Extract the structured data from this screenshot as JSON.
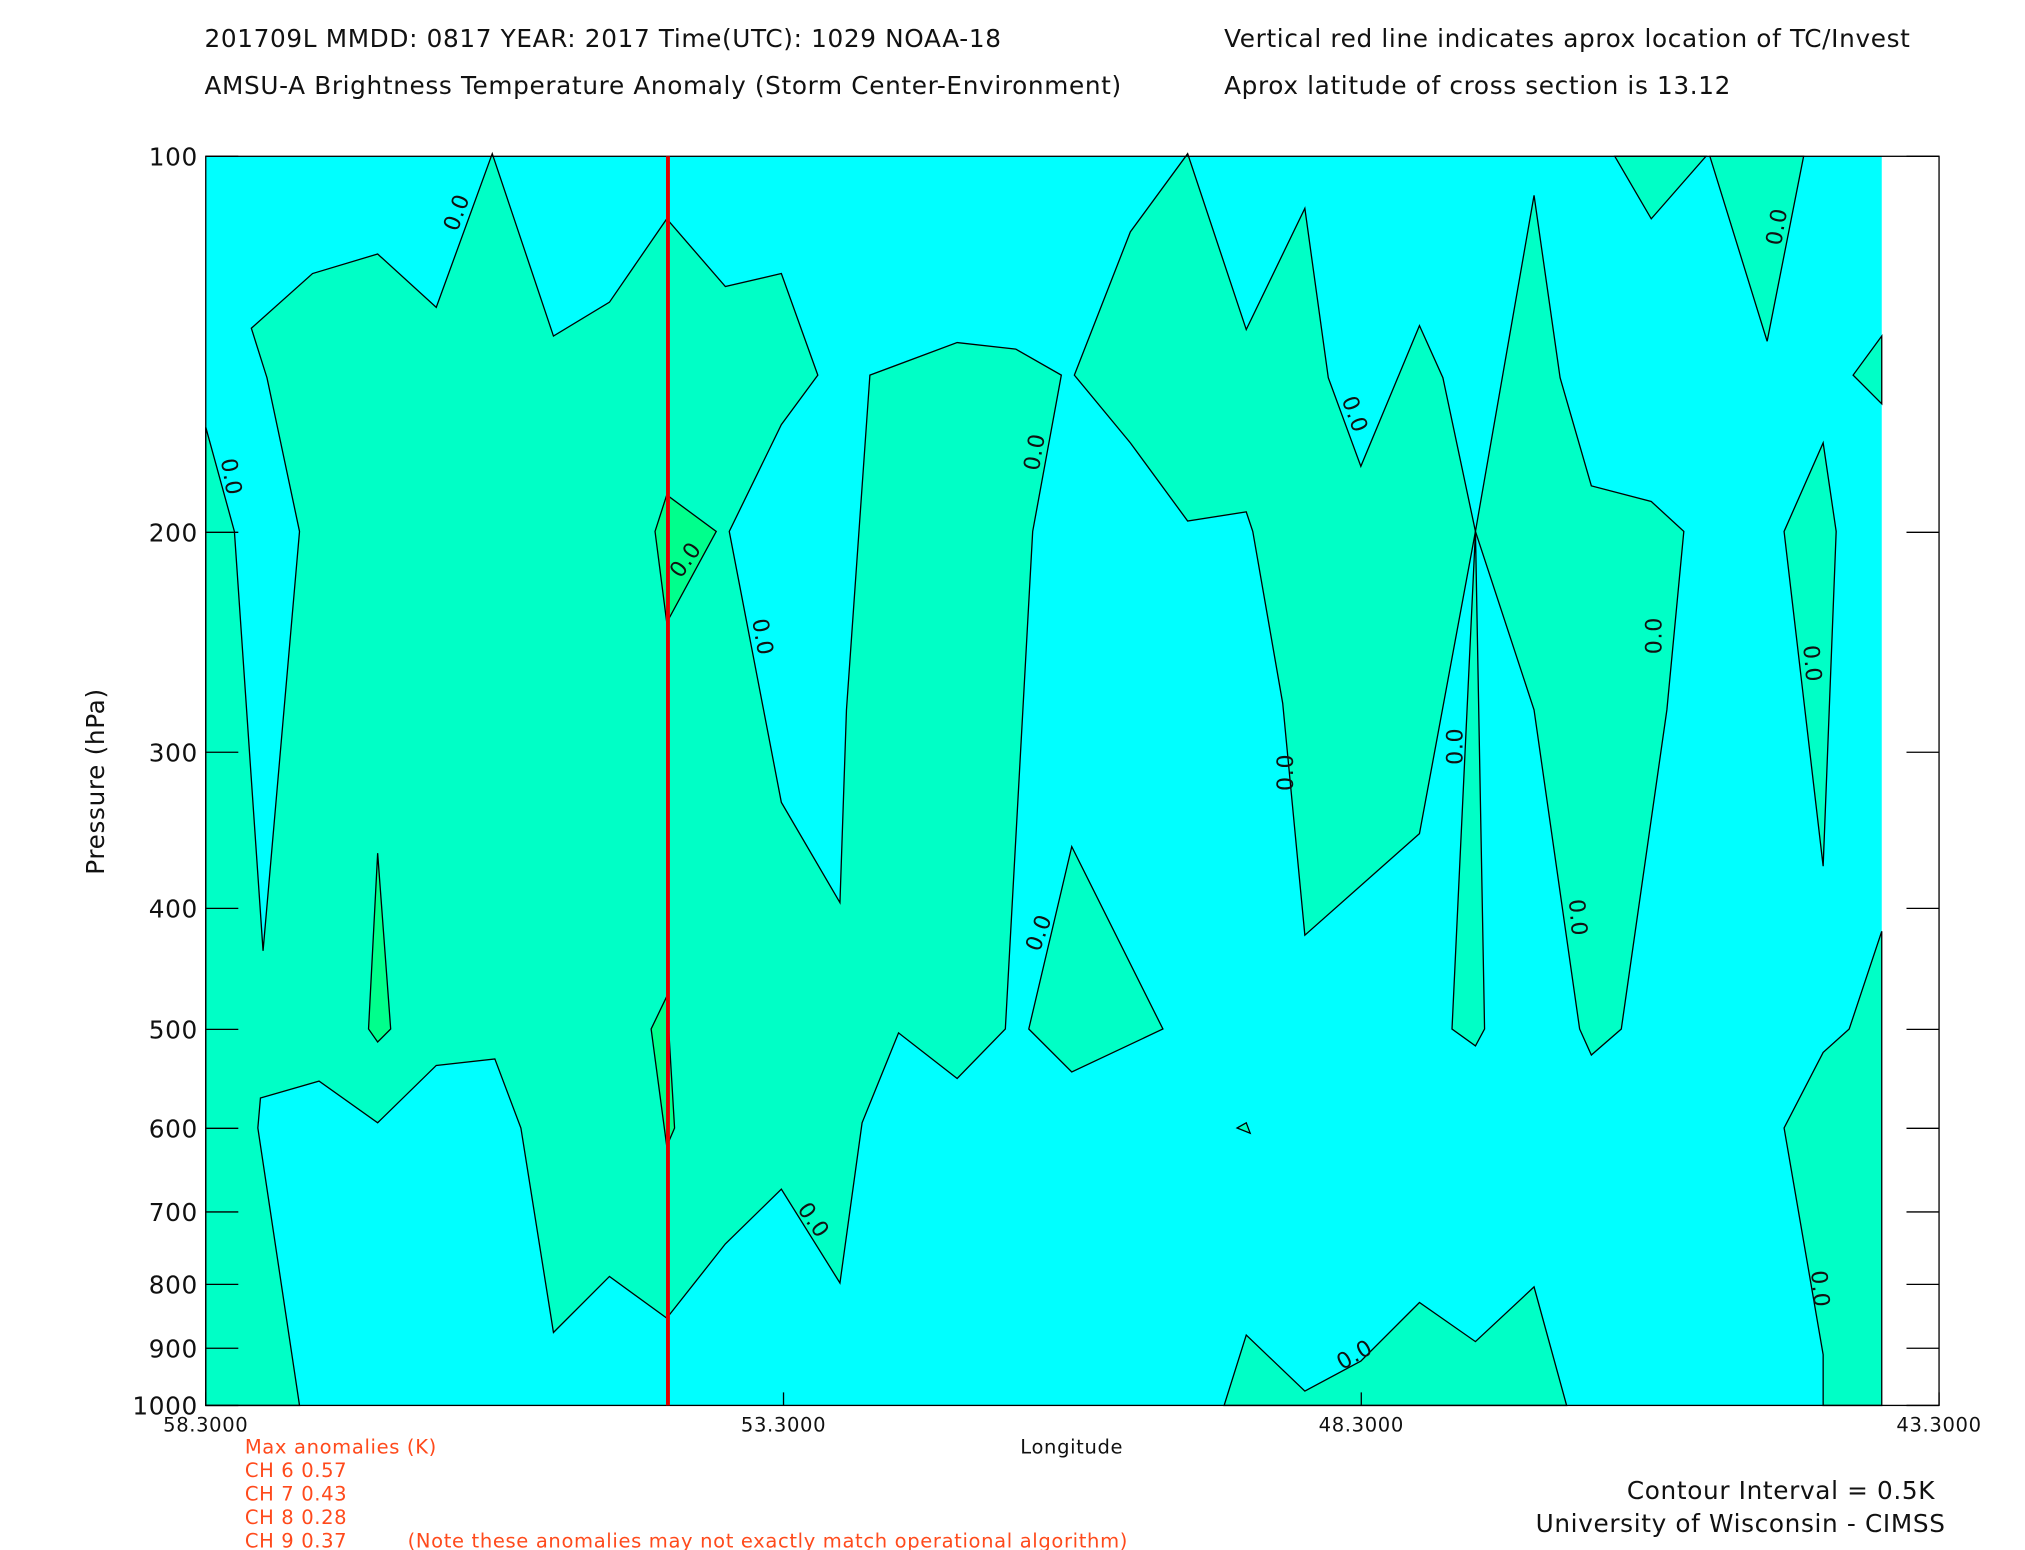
{
  "title_left": [
    "201709L  MMDD: 0817 YEAR: 2017 Time(UTC): 1029 NOAA-18",
    "AMSU-A Brightness Temperature Anomaly (Storm Center-Environment)"
  ],
  "title_right": [
    "Vertical red line indicates aprox location of TC/Invest",
    "Aprox latitude of cross section is 13.12"
  ],
  "chart_data": {
    "type": "contour",
    "x_label": "Longitude",
    "y_label": "Pressure (hPa)",
    "xlim": [
      58.3,
      43.3
    ],
    "xticks": [
      {
        "value": 58.3,
        "label": "58.3000"
      },
      {
        "value": 53.3,
        "label": "53.3000"
      },
      {
        "value": 48.3,
        "label": "48.3000"
      },
      {
        "value": 43.3,
        "label": "43.3000"
      }
    ],
    "ylim": [
      1000,
      100
    ],
    "yticks": [
      100,
      200,
      300,
      400,
      500,
      600,
      700,
      800,
      900,
      1000
    ],
    "y_log": true,
    "storm_longitude": 54.3,
    "storm_line_color": "#e00000",
    "contour_labels": [
      "0.0",
      "0.0",
      "0.0",
      "0.0",
      "0.0",
      "0.0",
      "0.0",
      "0.0",
      "0.0",
      "0.0",
      "0.0",
      "0.0",
      "0.0",
      "0.0",
      "0.0",
      "0.0"
    ]
  },
  "anomalies": {
    "heading": "Max anomalies (K)",
    "rows": [
      "CH 6  0.57",
      "CH 7  0.43",
      "CH 8  0.28",
      "CH 9  0.37"
    ],
    "note": "(Note these anomalies may not exactly match operational algorithm)"
  },
  "footer": [
    "Contour Interval = 0.5K",
    "University of Wisconsin - CIMSS"
  ]
}
